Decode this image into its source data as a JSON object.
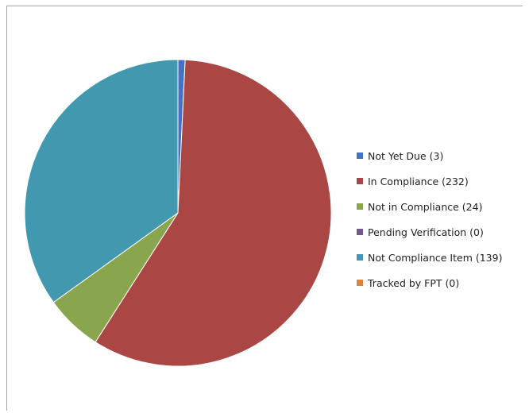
{
  "chart_data": {
    "type": "pie",
    "title": "",
    "legend_position": "right",
    "slices": [
      {
        "label": "Not Yet Due (3)",
        "value": 3,
        "color": "#4472c4"
      },
      {
        "label": "In Compliance (232)",
        "value": 232,
        "color": "#aa4643"
      },
      {
        "label": "Not in Compliance (24)",
        "value": 24,
        "color": "#89a54e"
      },
      {
        "label": "Pending Verification (0)",
        "value": 0,
        "color": "#71588f"
      },
      {
        "label": "Not Compliance Item (139)",
        "value": 139,
        "color": "#4198af"
      },
      {
        "label": "Tracked by FPT (0)",
        "value": 0,
        "color": "#db843d"
      }
    ]
  }
}
